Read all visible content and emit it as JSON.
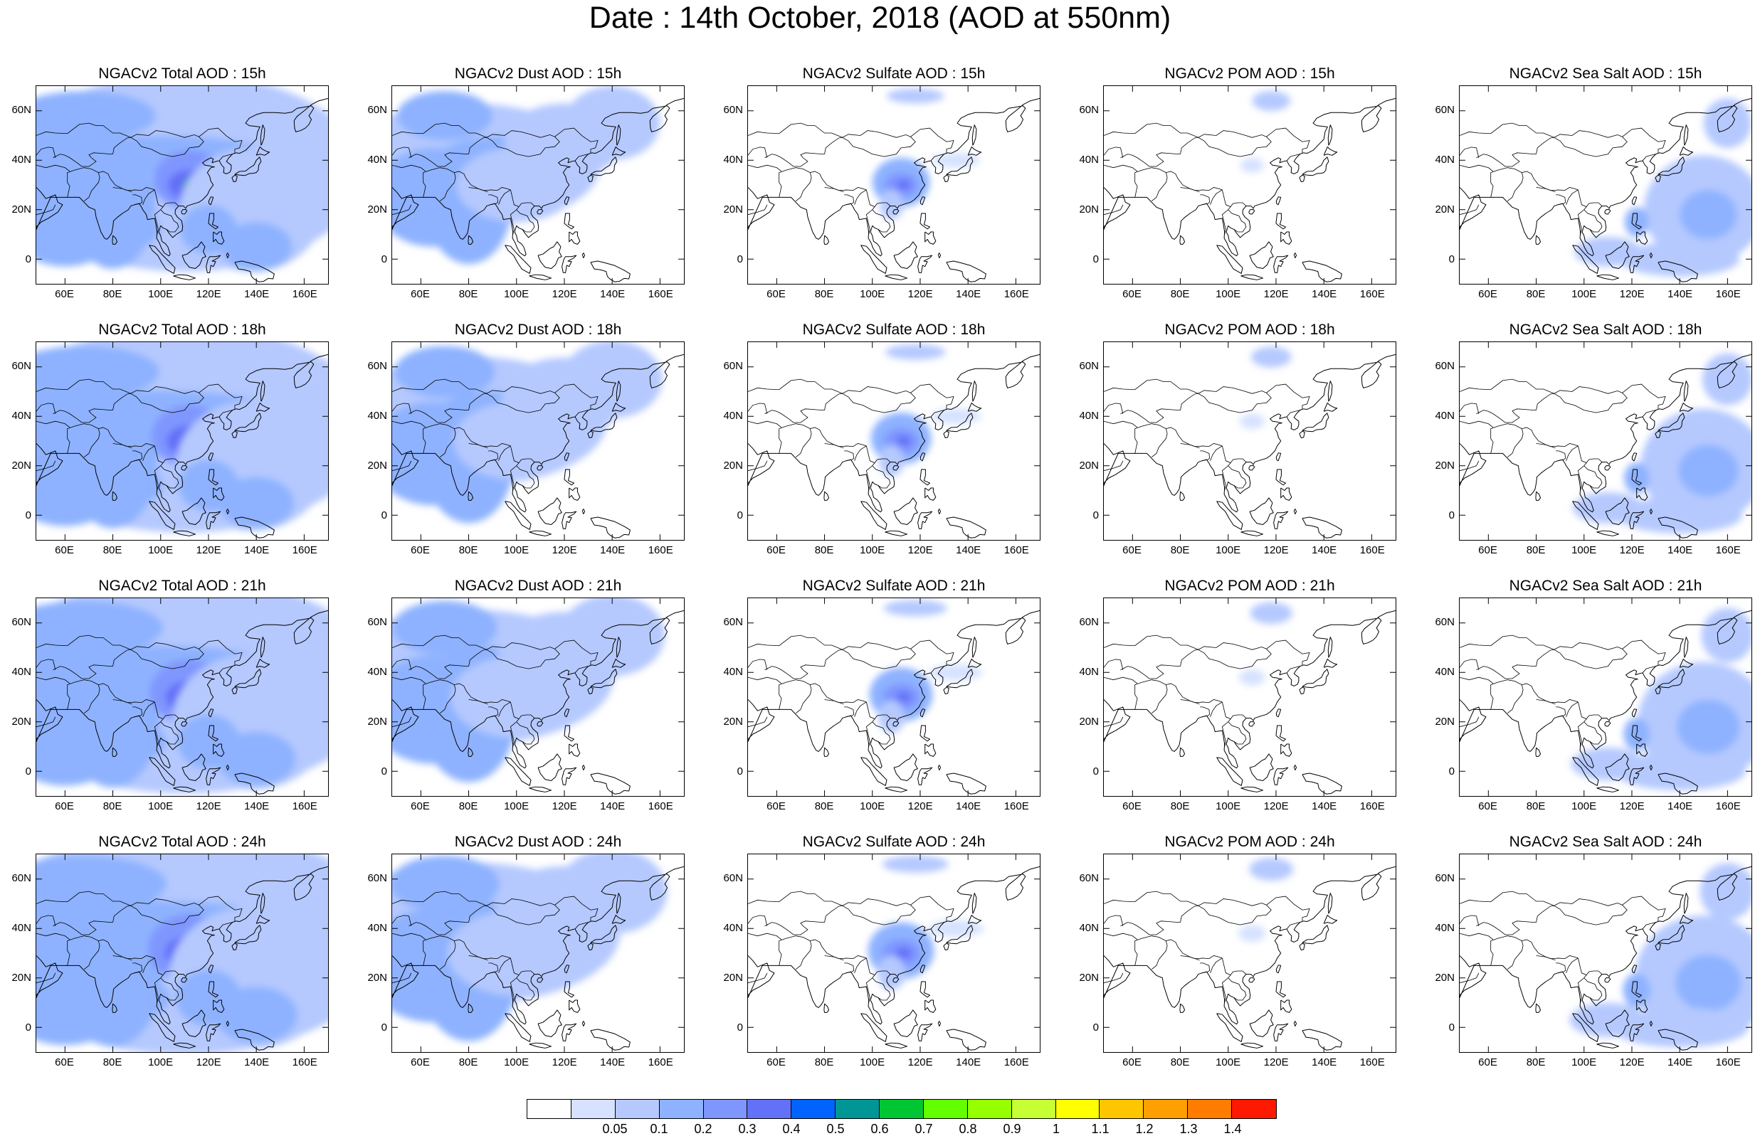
{
  "title": "Date : 14th October, 2018 (AOD at 550nm)",
  "panels": [
    [
      "NGACv2 Total AOD : 15h",
      "NGACv2 Dust AOD : 15h",
      "NGACv2 Sulfate AOD : 15h",
      "NGACv2 POM AOD : 15h",
      "NGACv2 Sea Salt AOD : 15h"
    ],
    [
      "NGACv2 Total AOD : 18h",
      "NGACv2 Dust AOD : 18h",
      "NGACv2 Sulfate AOD : 18h",
      "NGACv2 POM AOD : 18h",
      "NGACv2 Sea Salt AOD : 18h"
    ],
    [
      "NGACv2 Total AOD : 21h",
      "NGACv2 Dust AOD : 21h",
      "NGACv2 Sulfate AOD : 21h",
      "NGACv2 POM AOD : 21h",
      "NGACv2 Sea Salt AOD : 21h"
    ],
    [
      "NGACv2 Total AOD : 24h",
      "NGACv2 Dust AOD : 24h",
      "NGACv2 Sulfate AOD : 24h",
      "NGACv2 POM AOD : 24h",
      "NGACv2 Sea Salt  AOD : 24h"
    ]
  ],
  "panel_types": [
    "total",
    "dust",
    "sulfate",
    "pom",
    "seasalt"
  ],
  "lat_ticks": [
    "60N",
    "40N",
    "20N",
    "0"
  ],
  "lat_values": [
    60,
    40,
    20,
    0
  ],
  "lon_ticks": [
    "60E",
    "80E",
    "100E",
    "120E",
    "140E",
    "160E"
  ],
  "lon_values": [
    60,
    80,
    100,
    120,
    140,
    160
  ],
  "map_extent": {
    "lon_min": 48,
    "lon_max": 170,
    "lat_min": -10,
    "lat_max": 70
  },
  "colorbar": {
    "colors": [
      "#ffffff",
      "#d6e2ff",
      "#b5c9ff",
      "#8eb2ff",
      "#7f96ff",
      "#6370f8",
      "#0063ff",
      "#009696",
      "#00c633",
      "#63ff00",
      "#96ff00",
      "#c6ff33",
      "#ffff00",
      "#ffc600",
      "#ffa000",
      "#ff7c00",
      "#ff1900"
    ],
    "labels": [
      "0.05",
      "0.1",
      "0.2",
      "0.3",
      "0.4",
      "0.5",
      "0.6",
      "0.7",
      "0.8",
      "0.9",
      "1",
      "1.1",
      "1.2",
      "1.3",
      "1.4"
    ]
  }
}
